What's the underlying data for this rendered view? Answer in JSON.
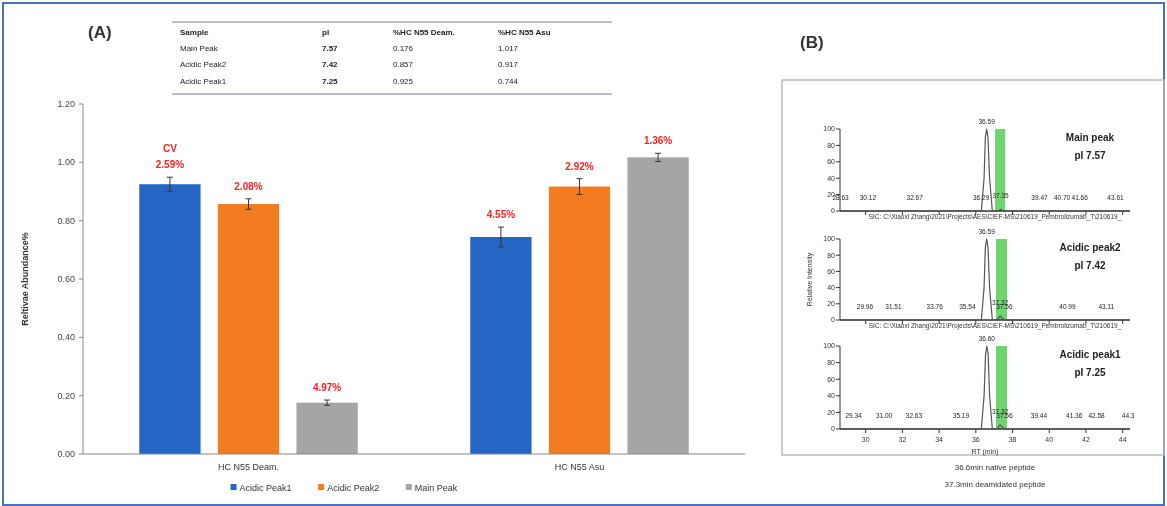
{
  "chart_data": [
    {
      "type": "bar",
      "title": "(A)",
      "categories": [
        "HC N55 Deam.",
        "HC N55 Asu"
      ],
      "ylabel": "Reltivae Abundance%",
      "series": [
        {
          "name": "Acidic Peak1",
          "color": "#2566c4",
          "values": [
            0.925,
            0.744
          ],
          "errors": [
            0.024,
            0.034
          ]
        },
        {
          "name": "Acidic Peak2",
          "color": "#f47c20",
          "values": [
            0.857,
            0.917
          ],
          "errors": [
            0.018,
            0.027
          ]
        },
        {
          "name": "Main Peak",
          "color": "#a5a5a5",
          "values": [
            0.176,
            1.017
          ],
          "errors": [
            0.009,
            0.014
          ]
        }
      ],
      "ylim": [
        0,
        1.2
      ],
      "yticks": [
        {
          "value": 0,
          "label": "0.00"
        },
        {
          "value": 0.2,
          "label": "0.20"
        },
        {
          "value": 0.4,
          "label": "0.40"
        },
        {
          "value": 0.6,
          "label": "0.60"
        },
        {
          "value": 0.8,
          "label": "0.80"
        },
        {
          "value": 1.0,
          "label": "1.00"
        },
        {
          "value": 1.2,
          "label": "1.20"
        }
      ],
      "legend": "bottom",
      "annotations": [
        "CV",
        "2.59%",
        "4.55%",
        "2.08%",
        "2.92%",
        "4.97%",
        "1.36%",
        "Sample",
        "pI",
        "%HC N55 Deam.",
        "%HC N55 Asu",
        "Main Peak",
        "7.57",
        "0.176",
        "1.017",
        "Acidic Peak2",
        "7.42",
        "0.857",
        "0.917",
        "Acidic Peak1",
        "7.25",
        "0.925",
        "0.744"
      ]
    },
    {
      "type": "line",
      "title": "(B)",
      "tick_labels": "y",
      "series": [
        {
          "color": "#555555",
          "x": [
            28.6,
            36.3,
            36.45,
            36.52,
            36.59,
            36.66,
            36.75,
            36.9,
            37.2,
            37.35,
            37.5,
            44.4
          ],
          "values": [
            0,
            0,
            40,
            90,
            100,
            90,
            40,
            0,
            0,
            2,
            0,
            0
          ]
        }
      ],
      "xlim": [
        28.6,
        44.4
      ],
      "xticks": [
        30,
        32,
        34,
        36,
        38,
        40,
        42,
        44
      ],
      "ylim": [
        0,
        100
      ],
      "yticks": [
        0,
        20,
        40,
        60,
        80,
        100
      ],
      "bands": [
        {
          "axis": "x",
          "from": 37.05,
          "to": 37.6,
          "color": "#6fd46f"
        }
      ],
      "annotations": [
        "Main peak",
        "pI 7.57",
        "SIC: C:\\Xiaoxi Zhang\\2021\\Projects\\AES\\CIEF-MS\\210619_Pembrolizumab_T\\210619_",
        {
          "text": "36.59",
          "x": 36.59,
          "y": 100
        },
        {
          "text": "28.63",
          "x": 28.63,
          "y": 0
        },
        {
          "text": "30.12",
          "x": 30.12,
          "y": 0
        },
        {
          "text": "32.67",
          "x": 32.67,
          "y": 0
        },
        {
          "text": "36.29",
          "x": 36.29,
          "y": 0
        },
        {
          "text": "37.35",
          "x": 37.35,
          "y": 2
        },
        {
          "text": "39.47",
          "x": 39.47,
          "y": 0
        },
        {
          "text": "40.70",
          "x": 40.7,
          "y": 0
        },
        {
          "text": "41.66",
          "x": 41.66,
          "y": 0
        },
        {
          "text": "43.61",
          "x": 43.61,
          "y": 0
        }
      ]
    },
    {
      "type": "line",
      "tick_labels": "y",
      "ylabel": "Relative Intensity",
      "series": [
        {
          "color": "#555555",
          "x": [
            28.6,
            36.3,
            36.45,
            36.52,
            36.59,
            36.66,
            36.75,
            36.9,
            37.15,
            37.32,
            37.5,
            37.7,
            44.4
          ],
          "values": [
            0,
            0,
            40,
            90,
            100,
            90,
            40,
            0,
            0,
            5,
            1,
            0,
            0
          ]
        }
      ],
      "xlim": [
        28.6,
        44.4
      ],
      "xticks": [
        30,
        32,
        34,
        36,
        38,
        40,
        42,
        44
      ],
      "ylim": [
        0,
        100
      ],
      "yticks": [
        0,
        20,
        40,
        60,
        80,
        100
      ],
      "bands": [
        {
          "axis": "x",
          "from": 37.1,
          "to": 37.7,
          "color": "#6fd46f"
        }
      ],
      "annotations": [
        "Acidic peak2",
        "pI 7.42",
        "SIC: C:\\Xiaoxi Zhang\\2021\\Projects\\AES\\CIEF-MS\\210619_Pembrolizumab_T\\210619_",
        {
          "text": "36.59",
          "x": 36.59,
          "y": 100
        },
        {
          "text": "29.96",
          "x": 29.96,
          "y": 0
        },
        {
          "text": "31.51",
          "x": 31.51,
          "y": 0
        },
        {
          "text": "33.76",
          "x": 33.76,
          "y": 0
        },
        {
          "text": "35.54",
          "x": 35.54,
          "y": 0
        },
        {
          "text": "37.32",
          "x": 37.32,
          "y": 5
        },
        {
          "text": "37.56",
          "x": 37.56,
          "y": 0
        },
        {
          "text": "40.99",
          "x": 40.99,
          "y": 0
        },
        {
          "text": "43.11",
          "x": 43.11,
          "y": 0
        }
      ]
    },
    {
      "type": "line",
      "xlabel": "RT (min)",
      "series": [
        {
          "color": "#555555",
          "x": [
            28.6,
            36.3,
            36.45,
            36.53,
            36.6,
            36.67,
            36.75,
            36.9,
            37.15,
            37.32,
            37.5,
            37.7,
            44.4
          ],
          "values": [
            0,
            0,
            40,
            90,
            100,
            90,
            40,
            0,
            0,
            5,
            1,
            0,
            0
          ]
        }
      ],
      "xlim": [
        28.6,
        44.4
      ],
      "xticks": [
        30,
        32,
        34,
        36,
        38,
        40,
        42,
        44
      ],
      "ylim": [
        0,
        100
      ],
      "yticks": [
        0,
        20,
        40,
        60,
        80,
        100
      ],
      "bands": [
        {
          "axis": "x",
          "from": 37.1,
          "to": 37.7,
          "color": "#6fd46f"
        }
      ],
      "annotations": [
        "Acidic peak1",
        "pI 7.25",
        "36.6min native peptide",
        "37.3min deamidated peptide",
        {
          "text": "36.60",
          "x": 36.6,
          "y": 100
        },
        {
          "text": "29.34",
          "x": 29.34,
          "y": 0
        },
        {
          "text": "31.00",
          "x": 31.0,
          "y": 0
        },
        {
          "text": "32.63",
          "x": 32.63,
          "y": 0
        },
        {
          "text": "35.19",
          "x": 35.19,
          "y": 0
        },
        {
          "text": "37.32",
          "x": 37.32,
          "y": 5
        },
        {
          "text": "37.56",
          "x": 37.56,
          "y": 0
        },
        {
          "text": "39.44",
          "x": 39.44,
          "y": 0
        },
        {
          "text": "41.36",
          "x": 41.36,
          "y": 0
        },
        {
          "text": "42.58",
          "x": 42.58,
          "y": 0
        },
        {
          "text": "44.3",
          "x": 44.3,
          "y": 0
        }
      ]
    }
  ]
}
